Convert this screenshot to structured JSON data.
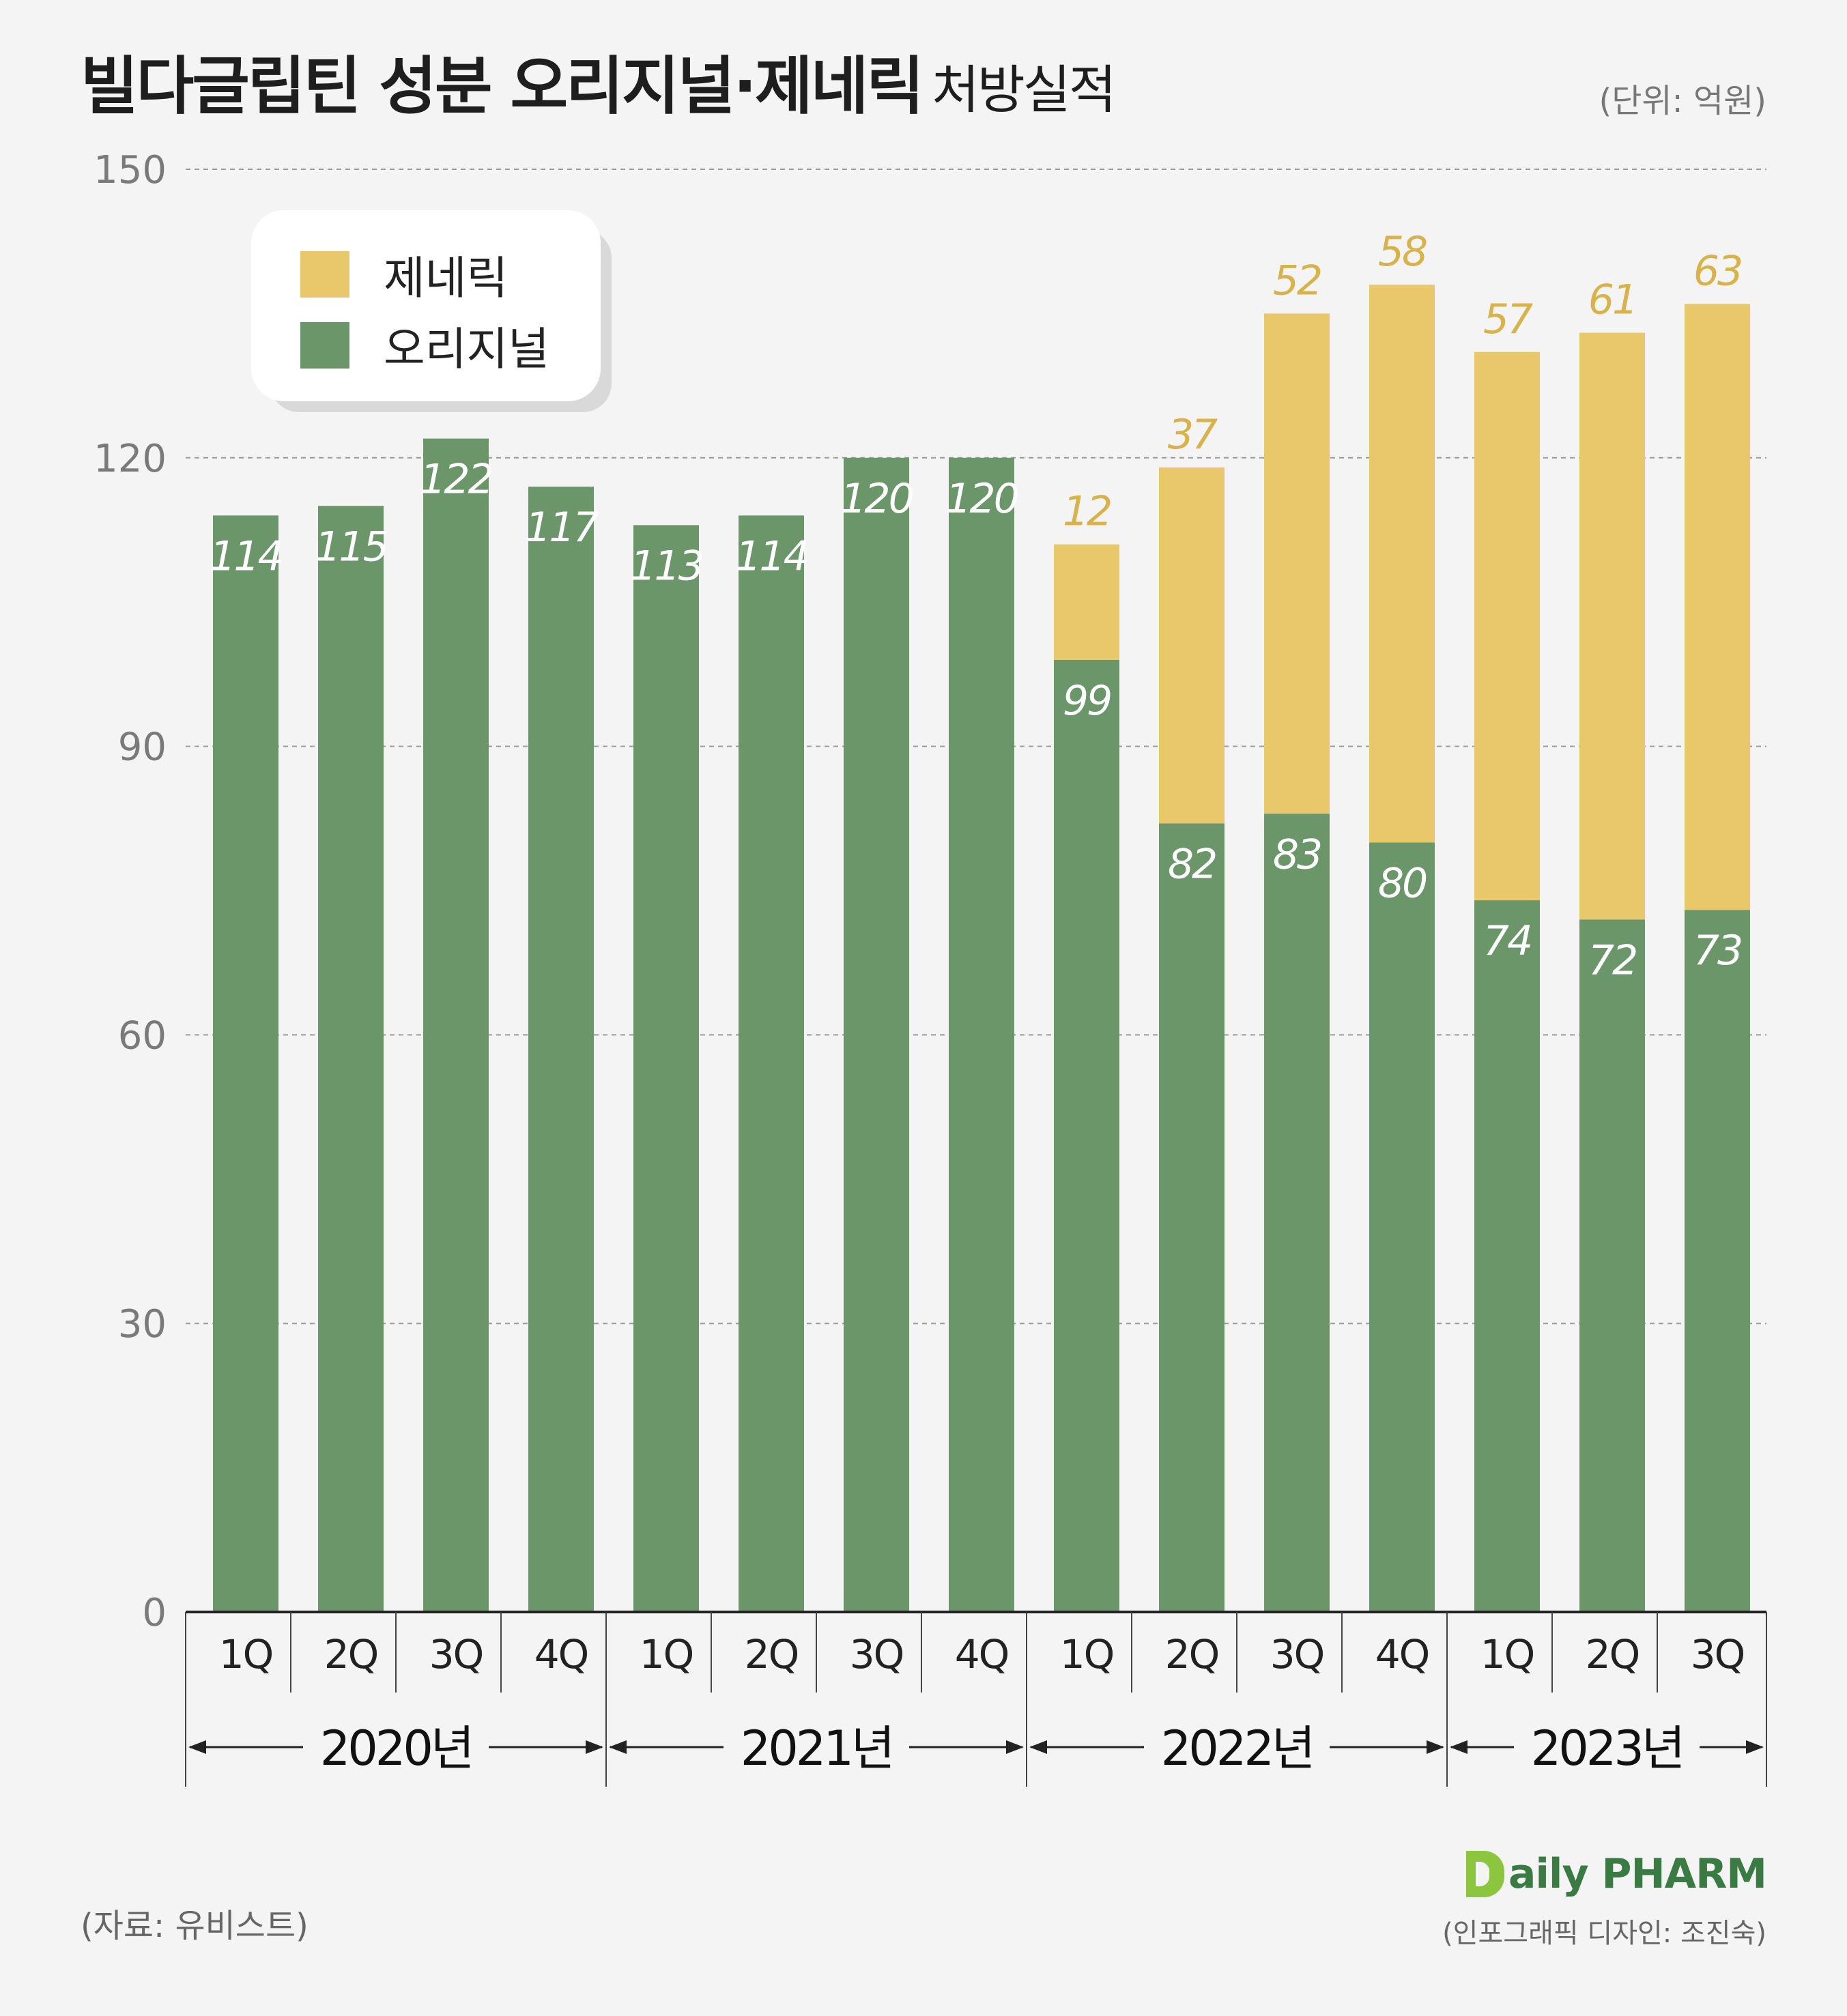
{
  "title": "빌다글립틴 성분 오리지널·제네릭",
  "subtitle": "처방실적",
  "unit_note": "(단위: 억원)",
  "source": "(자료: 유비스트)",
  "logo_text": "aily PHARM",
  "credit": "(인포그래픽 디자인: 조진숙)",
  "colors": {
    "original": "#6a9669",
    "generic": "#e8c86b",
    "generic_label": "#d8b24a",
    "axis": "#222222",
    "grid": "#9a9a9a"
  },
  "legend": [
    {
      "label": "제네릭",
      "color": "#e8c86b"
    },
    {
      "label": "오리지널",
      "color": "#6a9669"
    }
  ],
  "chart_data": {
    "type": "bar",
    "stacked": true,
    "title": "빌다글립틴 성분 오리지널·제네릭 처방실적",
    "ylabel": "",
    "ylim": [
      0,
      150
    ],
    "yticks": [
      0,
      30,
      60,
      90,
      120,
      150
    ],
    "grid": true,
    "legend_position": "top-left",
    "categories": [
      "1Q",
      "2Q",
      "3Q",
      "4Q",
      "1Q",
      "2Q",
      "3Q",
      "4Q",
      "1Q",
      "2Q",
      "3Q",
      "4Q",
      "1Q",
      "2Q",
      "3Q"
    ],
    "year_groups": [
      {
        "label": "2020년",
        "count": 4
      },
      {
        "label": "2021년",
        "count": 4
      },
      {
        "label": "2022년",
        "count": 4
      },
      {
        "label": "2023년",
        "count": 3
      }
    ],
    "series": [
      {
        "name": "오리지널",
        "values": [
          114,
          115,
          122,
          117,
          113,
          114,
          120,
          120,
          99,
          82,
          83,
          80,
          74,
          72,
          73
        ]
      },
      {
        "name": "제네릭",
        "values": [
          0,
          0,
          0,
          0,
          0,
          0,
          0,
          0,
          12,
          37,
          52,
          58,
          57,
          61,
          63
        ]
      }
    ]
  }
}
